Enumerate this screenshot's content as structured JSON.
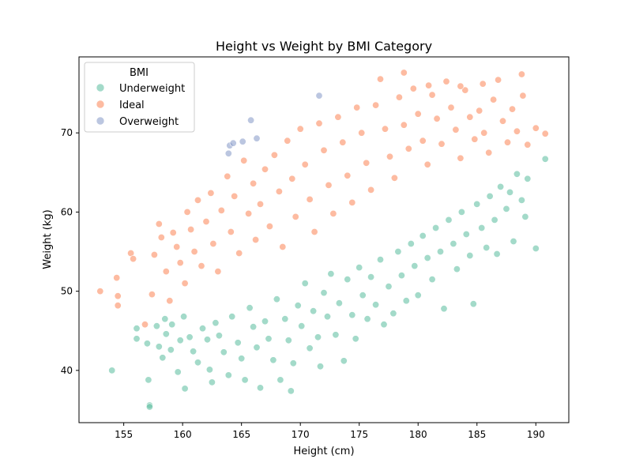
{
  "chart_data": {
    "type": "scatter",
    "title": "Height vs Weight by BMI Category",
    "xlabel": "Height (cm)",
    "ylabel": "Weight (kg)",
    "xlim": [
      151.2,
      192.8
    ],
    "ylim": [
      33.4,
      79.6
    ],
    "xticks": [
      155,
      160,
      165,
      170,
      175,
      180,
      185,
      190
    ],
    "yticks": [
      40,
      50,
      60,
      70
    ],
    "grid": false,
    "legend": {
      "title": "BMI",
      "placement": "top-left"
    },
    "series": [
      {
        "name": "Underweight",
        "color": "#66c2a5",
        "points": [
          [
            154.0,
            40.0
          ],
          [
            156.1,
            45.3
          ],
          [
            156.1,
            44.0
          ],
          [
            157.2,
            35.6
          ],
          [
            157.2,
            35.4
          ],
          [
            157.1,
            38.8
          ],
          [
            157.0,
            43.4
          ],
          [
            157.8,
            45.6
          ],
          [
            158.0,
            43.0
          ],
          [
            158.3,
            41.6
          ],
          [
            158.5,
            46.5
          ],
          [
            158.6,
            44.6
          ],
          [
            159.0,
            42.6
          ],
          [
            159.1,
            45.8
          ],
          [
            159.6,
            39.8
          ],
          [
            159.8,
            43.8
          ],
          [
            160.1,
            46.8
          ],
          [
            160.2,
            37.7
          ],
          [
            160.6,
            44.2
          ],
          [
            160.9,
            42.4
          ],
          [
            161.3,
            41.0
          ],
          [
            161.7,
            45.3
          ],
          [
            162.1,
            43.9
          ],
          [
            162.3,
            40.1
          ],
          [
            162.5,
            38.5
          ],
          [
            162.8,
            46.0
          ],
          [
            163.1,
            44.4
          ],
          [
            163.5,
            42.3
          ],
          [
            163.9,
            39.4
          ],
          [
            164.2,
            46.8
          ],
          [
            164.7,
            43.5
          ],
          [
            165.0,
            41.5
          ],
          [
            165.3,
            38.8
          ],
          [
            165.7,
            47.9
          ],
          [
            166.0,
            45.5
          ],
          [
            166.3,
            42.9
          ],
          [
            166.6,
            37.8
          ],
          [
            167.0,
            46.2
          ],
          [
            167.3,
            44.0
          ],
          [
            167.7,
            41.3
          ],
          [
            168.0,
            49.0
          ],
          [
            168.3,
            38.8
          ],
          [
            168.7,
            46.5
          ],
          [
            169.0,
            43.8
          ],
          [
            169.2,
            37.4
          ],
          [
            169.4,
            40.9
          ],
          [
            169.8,
            48.2
          ],
          [
            170.1,
            45.6
          ],
          [
            170.4,
            51.0
          ],
          [
            170.8,
            42.8
          ],
          [
            171.1,
            47.5
          ],
          [
            171.5,
            44.2
          ],
          [
            171.7,
            40.5
          ],
          [
            172.0,
            49.8
          ],
          [
            172.3,
            46.8
          ],
          [
            172.6,
            52.2
          ],
          [
            173.0,
            44.5
          ],
          [
            173.3,
            48.5
          ],
          [
            173.7,
            41.2
          ],
          [
            174.0,
            51.5
          ],
          [
            174.4,
            47.0
          ],
          [
            174.7,
            44.0
          ],
          [
            175.0,
            53.0
          ],
          [
            175.3,
            49.5
          ],
          [
            175.7,
            46.5
          ],
          [
            176.0,
            51.8
          ],
          [
            176.4,
            48.3
          ],
          [
            176.8,
            54.0
          ],
          [
            177.1,
            45.8
          ],
          [
            177.5,
            50.6
          ],
          [
            177.9,
            47.2
          ],
          [
            178.3,
            55.0
          ],
          [
            178.6,
            52.0
          ],
          [
            179.0,
            48.8
          ],
          [
            179.4,
            56.0
          ],
          [
            179.7,
            53.2
          ],
          [
            180.0,
            49.5
          ],
          [
            180.4,
            57.0
          ],
          [
            180.8,
            54.2
          ],
          [
            181.2,
            51.5
          ],
          [
            181.5,
            58.0
          ],
          [
            181.9,
            55.0
          ],
          [
            182.2,
            47.8
          ],
          [
            182.6,
            59.0
          ],
          [
            183.0,
            56.0
          ],
          [
            183.3,
            52.8
          ],
          [
            183.7,
            60.0
          ],
          [
            184.1,
            57.2
          ],
          [
            184.4,
            54.5
          ],
          [
            184.7,
            48.4
          ],
          [
            185.0,
            61.0
          ],
          [
            185.4,
            58.0
          ],
          [
            185.8,
            55.5
          ],
          [
            186.1,
            62.0
          ],
          [
            186.5,
            59.0
          ],
          [
            186.7,
            54.7
          ],
          [
            187.0,
            63.2
          ],
          [
            187.5,
            60.4
          ],
          [
            187.8,
            62.5
          ],
          [
            188.1,
            56.3
          ],
          [
            188.4,
            64.8
          ],
          [
            188.8,
            61.5
          ],
          [
            189.1,
            59.4
          ],
          [
            189.3,
            64.2
          ],
          [
            190.0,
            55.4
          ],
          [
            190.8,
            66.7
          ]
        ]
      },
      {
        "name": "Ideal",
        "color": "#fc8d62",
        "points": [
          [
            153.0,
            50.0
          ],
          [
            154.4,
            51.7
          ],
          [
            154.5,
            48.2
          ],
          [
            154.5,
            49.4
          ],
          [
            155.6,
            54.8
          ],
          [
            155.8,
            54.1
          ],
          [
            156.8,
            45.8
          ],
          [
            157.4,
            49.6
          ],
          [
            157.6,
            54.6
          ],
          [
            158.0,
            58.5
          ],
          [
            158.2,
            56.8
          ],
          [
            158.6,
            52.5
          ],
          [
            158.9,
            48.8
          ],
          [
            159.2,
            57.4
          ],
          [
            159.5,
            55.6
          ],
          [
            159.8,
            53.6
          ],
          [
            160.2,
            51.0
          ],
          [
            160.4,
            60.0
          ],
          [
            160.7,
            57.8
          ],
          [
            161.0,
            55.0
          ],
          [
            161.3,
            61.5
          ],
          [
            161.6,
            53.2
          ],
          [
            162.0,
            58.8
          ],
          [
            162.4,
            62.4
          ],
          [
            162.6,
            56.0
          ],
          [
            163.0,
            52.5
          ],
          [
            163.3,
            60.2
          ],
          [
            163.8,
            64.5
          ],
          [
            164.1,
            57.5
          ],
          [
            164.4,
            62.0
          ],
          [
            164.8,
            54.8
          ],
          [
            165.2,
            66.5
          ],
          [
            165.6,
            59.8
          ],
          [
            166.0,
            63.6
          ],
          [
            166.2,
            56.5
          ],
          [
            166.6,
            61.0
          ],
          [
            167.0,
            65.4
          ],
          [
            167.4,
            58.2
          ],
          [
            167.8,
            67.2
          ],
          [
            168.2,
            62.6
          ],
          [
            168.5,
            55.6
          ],
          [
            168.9,
            69.0
          ],
          [
            169.3,
            64.2
          ],
          [
            169.6,
            59.4
          ],
          [
            170.0,
            70.5
          ],
          [
            170.4,
            66.0
          ],
          [
            170.8,
            61.6
          ],
          [
            171.2,
            57.5
          ],
          [
            171.6,
            71.2
          ],
          [
            172.0,
            67.8
          ],
          [
            172.4,
            63.4
          ],
          [
            172.8,
            59.8
          ],
          [
            173.2,
            72.0
          ],
          [
            173.6,
            68.8
          ],
          [
            174.0,
            64.6
          ],
          [
            174.4,
            61.2
          ],
          [
            174.8,
            73.2
          ],
          [
            175.2,
            70.0
          ],
          [
            175.6,
            66.2
          ],
          [
            176.0,
            62.8
          ],
          [
            176.4,
            73.5
          ],
          [
            176.8,
            76.8
          ],
          [
            177.2,
            70.5
          ],
          [
            177.6,
            67.0
          ],
          [
            178.0,
            64.3
          ],
          [
            178.4,
            74.5
          ],
          [
            178.8,
            71.0
          ],
          [
            179.2,
            68.0
          ],
          [
            179.6,
            75.6
          ],
          [
            180.0,
            72.4
          ],
          [
            180.4,
            69.0
          ],
          [
            180.8,
            66.0
          ],
          [
            181.2,
            74.8
          ],
          [
            181.6,
            71.8
          ],
          [
            182.0,
            68.6
          ],
          [
            182.4,
            76.5
          ],
          [
            182.8,
            73.2
          ],
          [
            183.2,
            70.4
          ],
          [
            183.6,
            66.8
          ],
          [
            184.0,
            75.4
          ],
          [
            184.4,
            72.0
          ],
          [
            184.8,
            69.2
          ],
          [
            185.2,
            72.8
          ],
          [
            185.6,
            70.0
          ],
          [
            186.0,
            67.5
          ],
          [
            186.4,
            74.2
          ],
          [
            186.8,
            76.7
          ],
          [
            187.2,
            71.5
          ],
          [
            187.6,
            68.8
          ],
          [
            188.0,
            73.0
          ],
          [
            188.4,
            70.2
          ],
          [
            188.8,
            77.4
          ],
          [
            188.9,
            74.7
          ],
          [
            189.3,
            68.5
          ],
          [
            190.0,
            70.6
          ],
          [
            190.8,
            69.9
          ],
          [
            178.8,
            77.6
          ],
          [
            180.9,
            76.0
          ],
          [
            183.6,
            75.9
          ],
          [
            185.5,
            76.2
          ]
        ]
      },
      {
        "name": "Overweight",
        "color": "#8da0cb",
        "points": [
          [
            163.9,
            67.4
          ],
          [
            164.0,
            68.4
          ],
          [
            164.3,
            68.7
          ],
          [
            165.1,
            68.9
          ],
          [
            165.8,
            71.6
          ],
          [
            166.3,
            69.3
          ],
          [
            171.6,
            74.7
          ]
        ]
      }
    ]
  }
}
